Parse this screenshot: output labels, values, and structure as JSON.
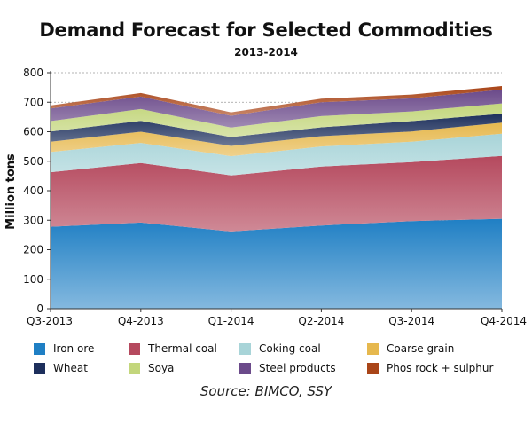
{
  "chart_data": {
    "type": "area",
    "stacked": true,
    "title": "Demand Forecast for Selected Commodities",
    "subtitle": "2013-2014",
    "ylabel": "Million tons",
    "xlabel": "",
    "ylim": [
      0,
      800
    ],
    "yticks": [
      0,
      100,
      200,
      300,
      400,
      500,
      600,
      700,
      800
    ],
    "grid": true,
    "legend_position": "bottom",
    "categories": [
      "Q3-2013",
      "Q4-2013",
      "Q1-2014",
      "Q2-2014",
      "Q3-2014",
      "Q4-2014"
    ],
    "series": [
      {
        "name": "Iron ore",
        "color": "#1f7fc4",
        "values": [
          278,
          292,
          262,
          282,
          297,
          305
        ]
      },
      {
        "name": "Thermal coal",
        "color": "#b5495e",
        "values": [
          185,
          202,
          190,
          200,
          200,
          213
        ]
      },
      {
        "name": "Coking coal",
        "color": "#a8d4d8",
        "values": [
          68,
          68,
          65,
          68,
          69,
          75
        ]
      },
      {
        "name": "Coarse grain",
        "color": "#e6b84e",
        "values": [
          35,
          38,
          35,
          35,
          35,
          38
        ]
      },
      {
        "name": "Wheat",
        "color": "#1d2f5c",
        "values": [
          35,
          37,
          30,
          30,
          35,
          30
        ]
      },
      {
        "name": "Soya",
        "color": "#c3d67c",
        "values": [
          35,
          40,
          32,
          38,
          33,
          35
        ]
      },
      {
        "name": "Steel products",
        "color": "#6b4a8a",
        "values": [
          43,
          42,
          40,
          47,
          44,
          47
        ]
      },
      {
        "name": "Phos rock + sulphur",
        "color": "#a94518",
        "values": [
          10,
          12,
          12,
          12,
          13,
          12
        ]
      }
    ]
  },
  "source": "Source: BIMCO, SSY"
}
